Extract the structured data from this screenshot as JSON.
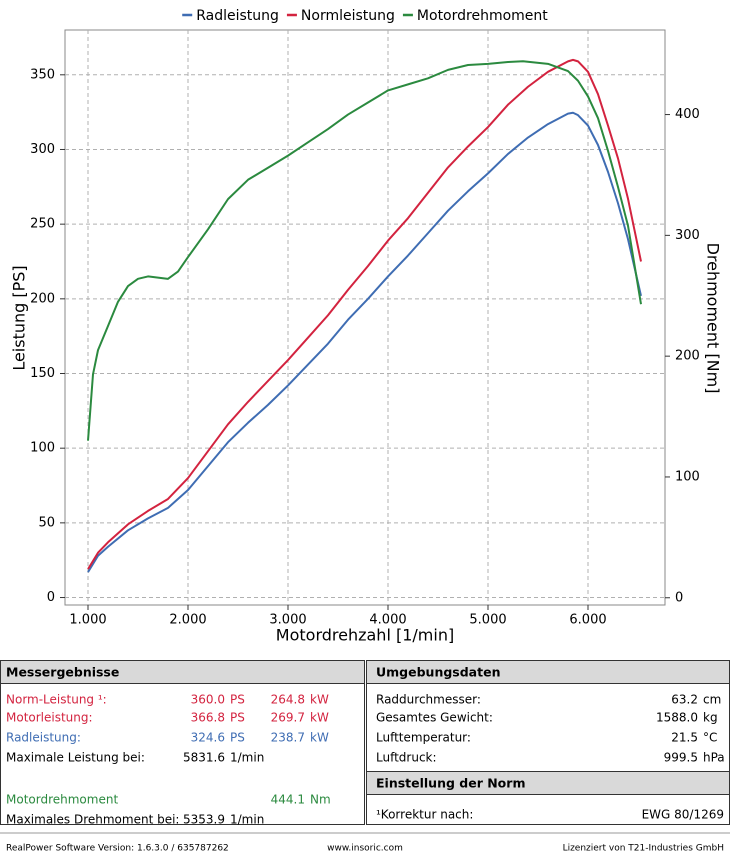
{
  "chart_data": {
    "type": "line",
    "x_label": "Motordrehzahl [1/min]",
    "y_label": "Leistung [PS]",
    "y2_label": "Drehmoment [Nm]",
    "xlim": [
      770,
      6770
    ],
    "xticks": [
      {
        "value": 1000,
        "label": "1.000"
      },
      {
        "value": 2000,
        "label": "2.000"
      },
      {
        "value": 3000,
        "label": "3.000"
      },
      {
        "value": 4000,
        "label": "4.000"
      },
      {
        "value": 5000,
        "label": "5.000"
      },
      {
        "value": 6000,
        "label": "6.000"
      }
    ],
    "ylim": [
      -5,
      380
    ],
    "yticks": [
      0,
      50,
      100,
      150,
      200,
      250,
      300,
      350
    ],
    "y2lim": [
      -6,
      470
    ],
    "y2ticks": [
      0,
      100,
      200,
      300,
      400
    ],
    "grid": true,
    "legend": "top",
    "series": [
      {
        "name": "Radleistung",
        "color": "#3f6db3",
        "x": [
          1000,
          1100,
          1200,
          1400,
          1600,
          1800,
          2000,
          2200,
          2400,
          2600,
          2800,
          3000,
          3200,
          3400,
          3600,
          3800,
          4000,
          4200,
          4400,
          4600,
          4800,
          5000,
          5200,
          5400,
          5600,
          5800,
          5850,
          5900,
          6000,
          6100,
          6200,
          6300,
          6400,
          6530
        ],
        "values": [
          17,
          28,
          34,
          45,
          53,
          60,
          72,
          88,
          104,
          117,
          129,
          142,
          156,
          170,
          186,
          200,
          215,
          229,
          244,
          259,
          272,
          284,
          297,
          308,
          317,
          324,
          324.6,
          323,
          316,
          303,
          285,
          264,
          240,
          202
        ]
      },
      {
        "name": "Normleistung",
        "color": "#d3233f",
        "x": [
          1000,
          1100,
          1200,
          1400,
          1600,
          1800,
          2000,
          2200,
          2400,
          2600,
          2800,
          3000,
          3200,
          3400,
          3600,
          3800,
          4000,
          4200,
          4400,
          4600,
          4800,
          5000,
          5200,
          5400,
          5600,
          5800,
          5850,
          5900,
          6000,
          6100,
          6200,
          6300,
          6400,
          6530
        ],
        "values": [
          19,
          30,
          37,
          49,
          58,
          66,
          80,
          98,
          116,
          131,
          145,
          159,
          174,
          189,
          206,
          222,
          239,
          254,
          271,
          288,
          302,
          315,
          330,
          342,
          352,
          359,
          360,
          359,
          352,
          337,
          316,
          294,
          267,
          225
        ]
      },
      {
        "name": "Motordrehmoment",
        "color": "#2b8a3f",
        "axis": "y2",
        "x": [
          1000,
          1050,
          1100,
          1200,
          1300,
          1400,
          1500,
          1600,
          1700,
          1800,
          1900,
          2000,
          2200,
          2400,
          2600,
          2800,
          3000,
          3200,
          3400,
          3600,
          3800,
          4000,
          4200,
          4400,
          4600,
          4800,
          5000,
          5200,
          5350,
          5600,
          5800,
          5900,
          6000,
          6100,
          6200,
          6300,
          6400,
          6530
        ],
        "values": [
          130,
          185,
          205,
          225,
          245,
          258,
          264,
          266,
          265,
          264,
          270,
          282,
          305,
          330,
          346,
          356,
          366,
          377,
          388,
          400,
          410,
          420,
          425,
          430,
          437,
          441,
          442,
          443.5,
          444.1,
          442,
          436,
          428,
          415,
          397,
          370,
          340,
          308,
          243
        ]
      }
    ]
  },
  "results": {
    "title": "Messergebnisse",
    "rows": [
      {
        "label": "Norm-Leistung ¹:",
        "value": "360.0",
        "unit": "PS",
        "value2": "264.8",
        "unit2": "kW",
        "color": "#d3233f"
      },
      {
        "label": "Motorleistung:",
        "value": "366.8",
        "unit": "PS",
        "value2": "269.7",
        "unit2": "kW",
        "color": "#d3233f"
      },
      {
        "label": "Radleistung:",
        "value": "324.6",
        "unit": "PS",
        "value2": "238.7",
        "unit2": "kW",
        "color": "#3f6db3"
      },
      {
        "label": "Maximale Leistung bei:",
        "value": "5831.6",
        "unit": "1/min",
        "color": "#000000"
      },
      {
        "label": "Motordrehmoment",
        "value2": "444.1",
        "unit2": "Nm",
        "color": "#2b8a3f"
      },
      {
        "label": "Maximales Drehmoment bei:",
        "value": "5353.9",
        "unit": "1/min",
        "color": "#000000"
      }
    ]
  },
  "environment": {
    "title": "Umgebungsdaten",
    "rows": [
      {
        "label": "Raddurchmesser:",
        "value": "63.2",
        "unit": "cm"
      },
      {
        "label": "Gesamtes Gewicht:",
        "value": "1588.0",
        "unit": "kg"
      },
      {
        "label": "Lufttemperatur:",
        "value": "21.5",
        "unit": "°C"
      },
      {
        "label": "Luftdruck:",
        "value": "999.5",
        "unit": "hPa"
      }
    ]
  },
  "norm": {
    "title": "Einstellung der Norm",
    "label": "¹Korrektur nach:",
    "value": "EWG 80/1269"
  },
  "footer": {
    "left": "RealPower Software Version: 1.6.3.0 / 635787262",
    "center": "www.insoric.com",
    "right": "Lizenziert von T21-Industries GmbH"
  }
}
